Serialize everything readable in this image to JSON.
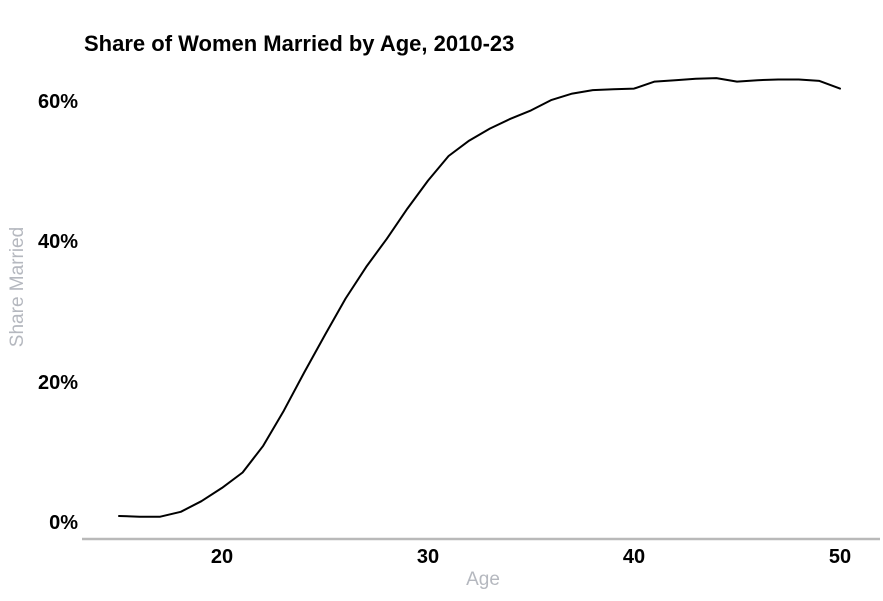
{
  "chart_data": {
    "type": "line",
    "title": "Share of Women Married by Age, 2010-23",
    "xlabel": "Age",
    "ylabel": "Share Married",
    "series_name": "share-of-women-married-pct",
    "x": [
      15,
      16,
      17,
      18,
      19,
      20,
      21,
      22,
      23,
      24,
      25,
      26,
      27,
      28,
      29,
      30,
      31,
      32,
      33,
      34,
      35,
      36,
      37,
      38,
      39,
      40,
      41,
      42,
      43,
      44,
      45,
      46,
      47,
      48,
      49,
      50
    ],
    "values": [
      1.0,
      0.9,
      0.9,
      1.6,
      3.1,
      5.0,
      7.2,
      11.0,
      16.0,
      21.5,
      26.8,
      32.0,
      36.5,
      40.5,
      44.8,
      48.8,
      52.3,
      54.5,
      56.2,
      57.6,
      58.8,
      60.3,
      61.2,
      61.7,
      61.8,
      61.9,
      62.9,
      63.1,
      63.3,
      63.4,
      62.9,
      63.1,
      63.2,
      63.2,
      63.0,
      61.9
    ],
    "xticks": {
      "values": [
        20,
        30,
        40,
        50
      ],
      "labels": [
        "20",
        "30",
        "40",
        "50"
      ]
    },
    "yticks": {
      "values": [
        0,
        20,
        40,
        60
      ],
      "labels": [
        "0%",
        "20%",
        "40%",
        "60%"
      ]
    },
    "xlim": [
      14.5,
      51
    ],
    "ylim": [
      0,
      65
    ],
    "grid": false,
    "legend": false,
    "colors": {
      "line": "#000000",
      "axis_line": "#b9b9b9",
      "axis_title": "#b5b8bf",
      "tick_label": "#000000",
      "background": "#ffffff"
    }
  }
}
